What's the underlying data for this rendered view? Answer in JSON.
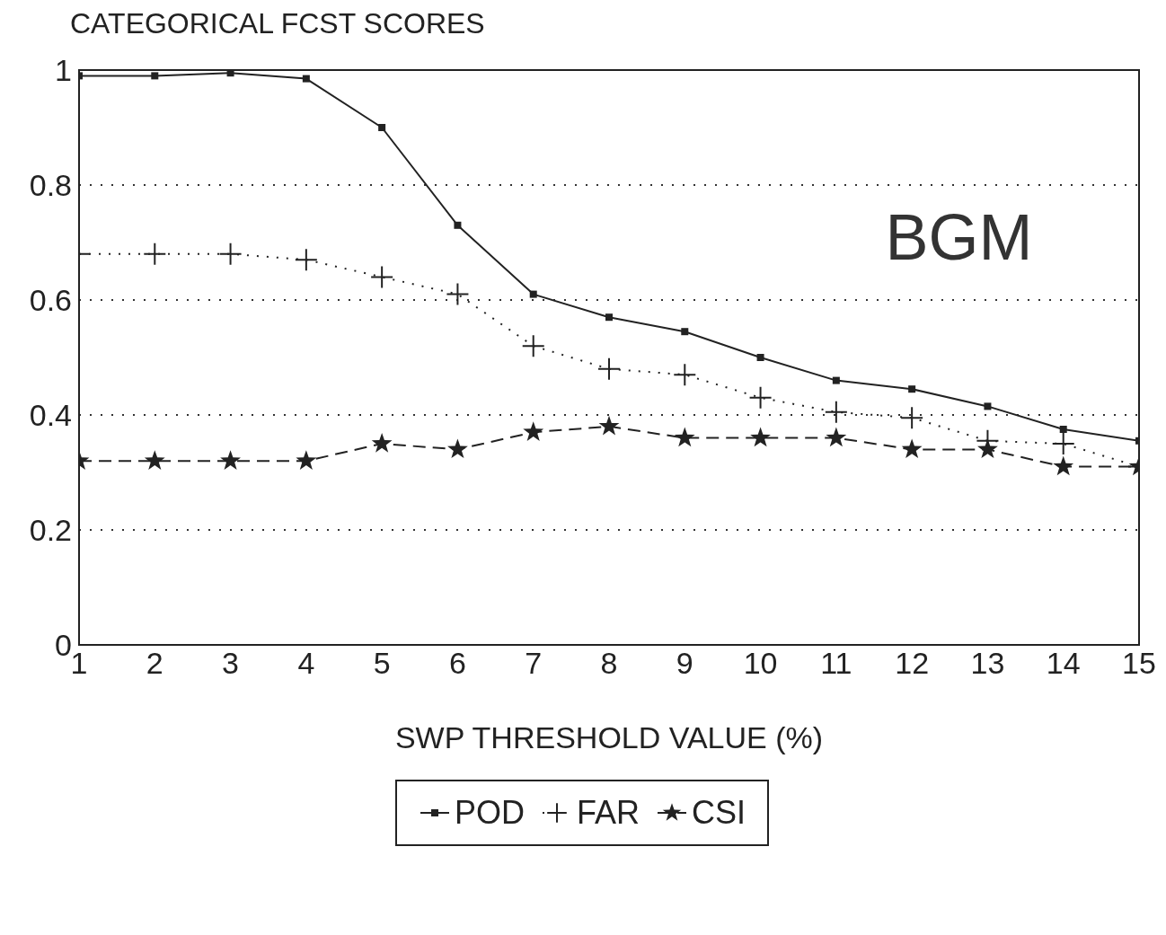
{
  "chart_data": {
    "type": "line",
    "title": "CATEGORICAL FCST SCORES",
    "xlabel": "SWP THRESHOLD VALUE (%)",
    "annotations": [
      "BGM"
    ],
    "x": [
      1,
      2,
      3,
      4,
      5,
      6,
      7,
      8,
      9,
      10,
      11,
      12,
      13,
      14,
      15
    ],
    "series": [
      {
        "name": "POD",
        "color": "#222222",
        "marker": "square",
        "line_style": "solid",
        "values": [
          0.99,
          0.99,
          0.995,
          0.985,
          0.9,
          0.73,
          0.61,
          0.57,
          0.545,
          0.5,
          0.46,
          0.445,
          0.415,
          0.375,
          0.355
        ]
      },
      {
        "name": "FAR",
        "color": "#222222",
        "marker": "cross",
        "line_style": "dotted",
        "values": [
          0.68,
          0.68,
          0.68,
          0.67,
          0.64,
          0.61,
          0.52,
          0.48,
          0.47,
          0.43,
          0.405,
          0.395,
          0.355,
          0.35,
          0.31
        ]
      },
      {
        "name": "CSI",
        "color": "#222222",
        "marker": "star",
        "line_style": "dashed",
        "values": [
          0.32,
          0.32,
          0.32,
          0.32,
          0.35,
          0.34,
          0.37,
          0.38,
          0.36,
          0.36,
          0.36,
          0.34,
          0.34,
          0.31,
          0.31
        ]
      }
    ],
    "xlim": [
      1,
      15
    ],
    "xticks": [
      1,
      2,
      3,
      4,
      5,
      6,
      7,
      8,
      9,
      10,
      11,
      12,
      13,
      14,
      15
    ],
    "ylim": [
      0,
      1
    ],
    "yticks": [
      0,
      0.2,
      0.4,
      0.6,
      0.8,
      1
    ],
    "grid": "y",
    "legend": "bottom"
  }
}
